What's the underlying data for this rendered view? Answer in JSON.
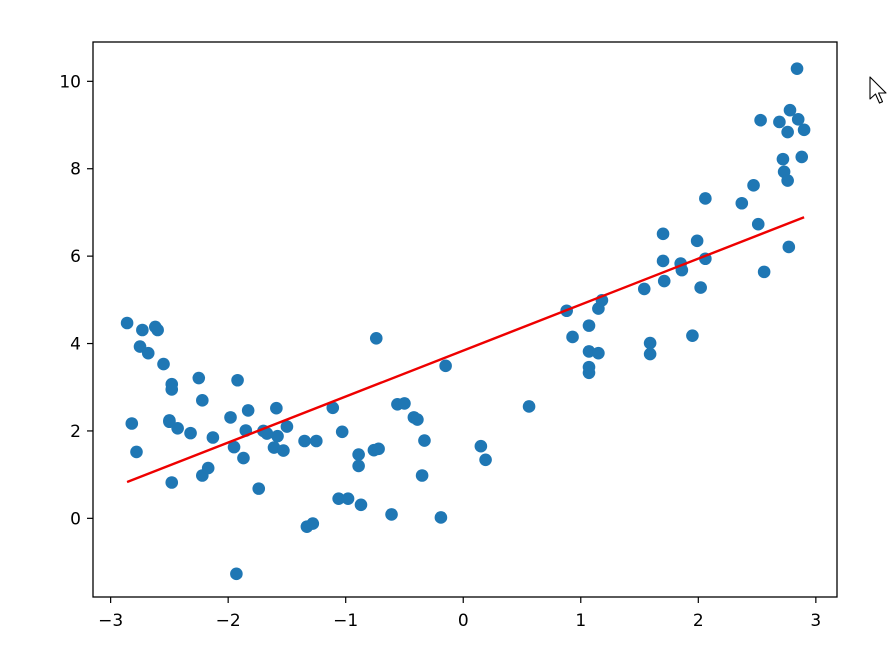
{
  "chart_data": {
    "type": "scatter",
    "title": "",
    "xlabel": "",
    "ylabel": "",
    "xlim": [
      -3.15,
      3.18
    ],
    "ylim": [
      -1.8,
      10.9
    ],
    "xticks": [
      -3,
      -2,
      -1,
      0,
      1,
      2,
      3
    ],
    "yticks": [
      0,
      2,
      4,
      6,
      8,
      10
    ],
    "xtick_labels": [
      "−3",
      "−2",
      "−1",
      "0",
      "1",
      "2",
      "3"
    ],
    "ytick_labels": [
      "0",
      "2",
      "4",
      "6",
      "8",
      "10"
    ],
    "grid": false,
    "legend": "none",
    "series": [
      {
        "kind": "scatter",
        "color": "#1f77b4",
        "points": [
          [
            -2.86,
            4.47
          ],
          [
            -2.82,
            2.17
          ],
          [
            -2.78,
            1.52
          ],
          [
            -2.75,
            3.93
          ],
          [
            -2.73,
            4.31
          ],
          [
            -2.68,
            3.78
          ],
          [
            -2.62,
            4.38
          ],
          [
            -2.6,
            4.31
          ],
          [
            -2.55,
            3.53
          ],
          [
            -2.5,
            2.24
          ],
          [
            -2.5,
            2.21
          ],
          [
            -2.48,
            3.07
          ],
          [
            -2.48,
            2.95
          ],
          [
            -2.48,
            0.82
          ],
          [
            -2.43,
            2.06
          ],
          [
            -2.32,
            1.95
          ],
          [
            -2.25,
            3.21
          ],
          [
            -2.22,
            2.7
          ],
          [
            -2.22,
            0.98
          ],
          [
            -2.17,
            1.15
          ],
          [
            -2.13,
            1.85
          ],
          [
            -1.98,
            2.31
          ],
          [
            -1.95,
            1.63
          ],
          [
            -1.93,
            -1.27
          ],
          [
            -1.92,
            3.16
          ],
          [
            -1.87,
            1.38
          ],
          [
            -1.85,
            2.01
          ],
          [
            -1.83,
            2.47
          ],
          [
            -1.74,
            0.68
          ],
          [
            -1.7,
            2.0
          ],
          [
            -1.67,
            1.94
          ],
          [
            -1.61,
            1.62
          ],
          [
            -1.59,
            2.52
          ],
          [
            -1.58,
            1.88
          ],
          [
            -1.53,
            1.55
          ],
          [
            -1.5,
            2.1
          ],
          [
            -1.35,
            1.77
          ],
          [
            -1.33,
            -0.19
          ],
          [
            -1.28,
            -0.12
          ],
          [
            -1.25,
            1.77
          ],
          [
            -1.11,
            2.53
          ],
          [
            -1.06,
            0.45
          ],
          [
            -1.03,
            1.98
          ],
          [
            -0.98,
            0.45
          ],
          [
            -0.89,
            1.46
          ],
          [
            -0.89,
            1.2
          ],
          [
            -0.87,
            0.31
          ],
          [
            -0.76,
            1.56
          ],
          [
            -0.74,
            4.12
          ],
          [
            -0.72,
            1.59
          ],
          [
            -0.61,
            0.09
          ],
          [
            -0.56,
            2.61
          ],
          [
            -0.5,
            2.63
          ],
          [
            -0.42,
            2.31
          ],
          [
            -0.39,
            2.26
          ],
          [
            -0.35,
            0.98
          ],
          [
            -0.33,
            1.78
          ],
          [
            -0.19,
            0.02
          ],
          [
            -0.15,
            3.49
          ],
          [
            0.15,
            1.65
          ],
          [
            0.19,
            1.34
          ],
          [
            0.56,
            2.56
          ],
          [
            0.88,
            4.75
          ],
          [
            0.93,
            4.15
          ],
          [
            1.07,
            4.41
          ],
          [
            1.07,
            3.82
          ],
          [
            1.07,
            3.33
          ],
          [
            1.07,
            3.46
          ],
          [
            1.15,
            4.8
          ],
          [
            1.15,
            3.78
          ],
          [
            1.18,
            4.99
          ],
          [
            1.54,
            5.25
          ],
          [
            1.59,
            4.01
          ],
          [
            1.59,
            3.76
          ],
          [
            1.7,
            6.51
          ],
          [
            1.7,
            5.89
          ],
          [
            1.71,
            5.43
          ],
          [
            1.85,
            5.83
          ],
          [
            1.86,
            5.68
          ],
          [
            1.95,
            4.18
          ],
          [
            1.99,
            6.35
          ],
          [
            2.02,
            5.28
          ],
          [
            2.06,
            7.32
          ],
          [
            2.06,
            5.94
          ],
          [
            2.37,
            7.21
          ],
          [
            2.47,
            7.62
          ],
          [
            2.51,
            6.73
          ],
          [
            2.53,
            9.11
          ],
          [
            2.56,
            5.64
          ],
          [
            2.69,
            9.07
          ],
          [
            2.72,
            8.22
          ],
          [
            2.73,
            7.93
          ],
          [
            2.76,
            8.84
          ],
          [
            2.76,
            7.73
          ],
          [
            2.77,
            6.21
          ],
          [
            2.78,
            9.34
          ],
          [
            2.84,
            10.29
          ],
          [
            2.85,
            9.13
          ],
          [
            2.88,
            8.27
          ],
          [
            2.9,
            8.89
          ]
        ]
      },
      {
        "kind": "line",
        "color": "#ee0000",
        "points": [
          [
            -2.86,
            0.83
          ],
          [
            2.9,
            6.89
          ]
        ]
      }
    ]
  },
  "cursor": {
    "icon": "arrow-cursor-icon"
  }
}
